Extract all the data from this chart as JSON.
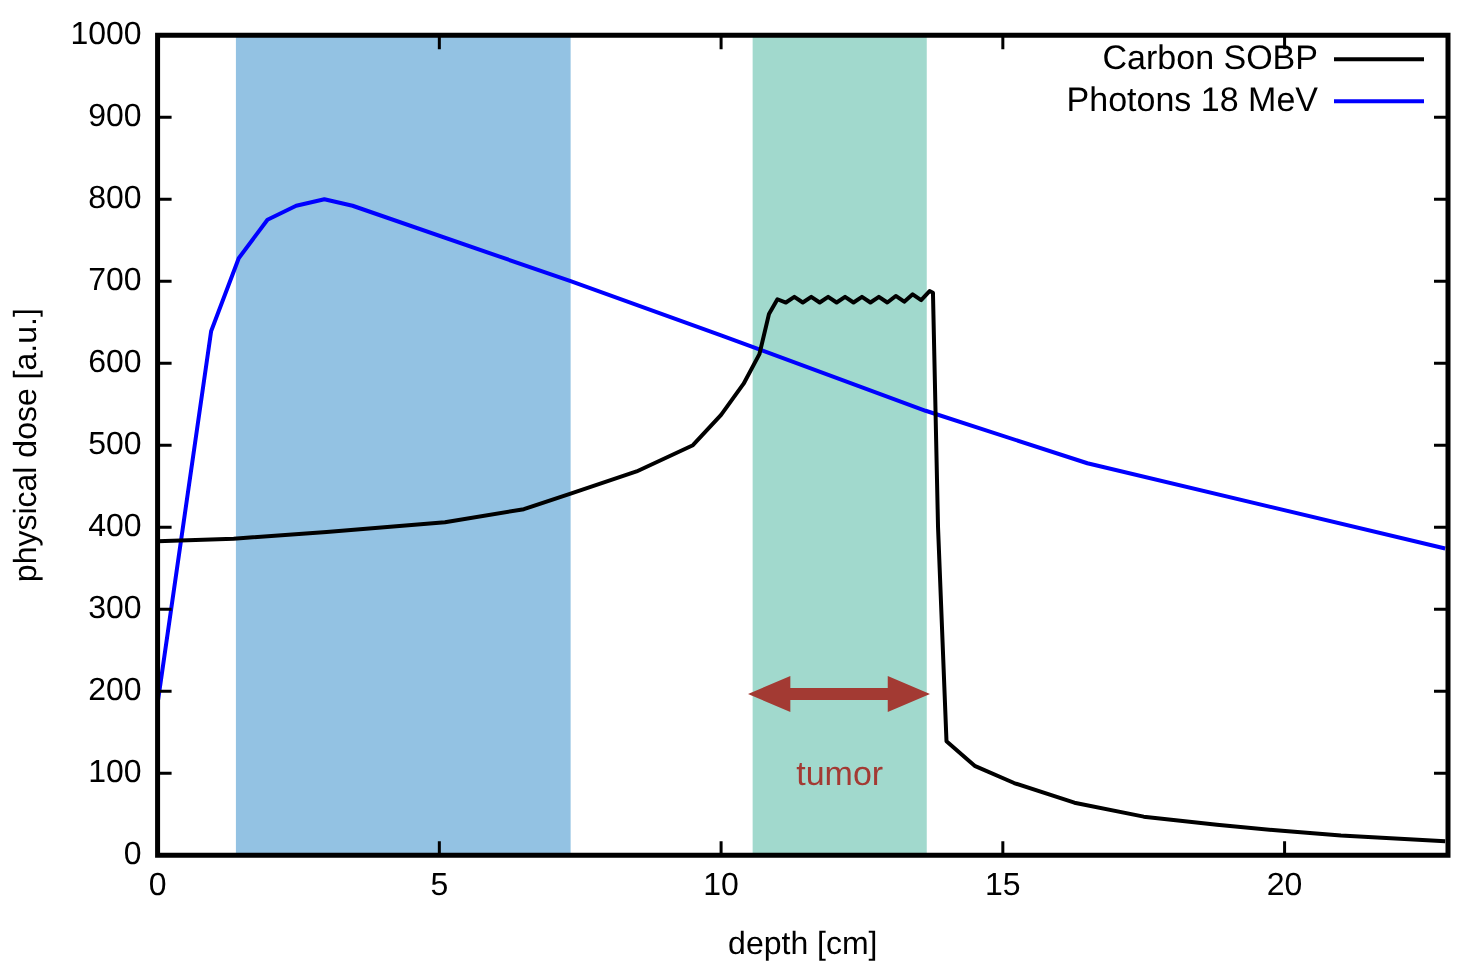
{
  "chart_data": {
    "type": "line",
    "xlabel": "depth [cm]",
    "ylabel": "physical dose [a.u.]",
    "xlim": [
      0,
      22.9
    ],
    "xticks": [
      0,
      5,
      10,
      15,
      20
    ],
    "ylim": [
      0,
      1000
    ],
    "yticks": [
      0,
      100,
      200,
      300,
      400,
      500,
      600,
      700,
      800,
      900,
      1000
    ],
    "grid": false,
    "legend": "top right",
    "marker": "none",
    "line_style": "solid",
    "series": [
      {
        "name": "Carbon SOBP",
        "color": "#000000",
        "x": [
          0,
          1.35,
          3,
          5.1,
          6.5,
          7.33,
          8.5,
          9.5,
          10,
          10.4,
          10.68,
          10.85,
          11.0,
          11.15,
          11.3,
          11.45,
          11.6,
          11.75,
          11.9,
          12.05,
          12.2,
          12.35,
          12.5,
          12.65,
          12.8,
          12.95,
          13.1,
          13.25,
          13.4,
          13.55,
          13.7,
          13.76,
          13.85,
          14.0,
          14.5,
          15.2,
          16.27,
          17.5,
          18.8,
          19.9,
          21,
          22.85
        ],
        "values": [
          383,
          386,
          394,
          406,
          422,
          441,
          468,
          500,
          537,
          575,
          611,
          660,
          678,
          674,
          681,
          674,
          681,
          674,
          681,
          674,
          681,
          674,
          681,
          674,
          681,
          674,
          682,
          675,
          684,
          677,
          688,
          686,
          400,
          139,
          109,
          88,
          64,
          47,
          37,
          30,
          24,
          17
        ]
      },
      {
        "name": "Photons 18 MeV",
        "color": "#0000ff",
        "x": [
          0,
          0.95,
          1.44,
          1.95,
          2.46,
          2.96,
          3.46,
          7.33,
          10,
          13.63,
          16.5,
          22.85
        ],
        "values": [
          185,
          639,
          728,
          775,
          792,
          800,
          792,
          700,
          634,
          542,
          478,
          374
        ]
      }
    ],
    "bands": [
      {
        "axis": "x",
        "from": 1.39,
        "to": 7.33,
        "color": "#93c2e3"
      },
      {
        "axis": "x",
        "from": 10.56,
        "to": 13.65,
        "color": "#a1d9cd"
      }
    ],
    "annotations": [
      "tumor"
    ]
  }
}
